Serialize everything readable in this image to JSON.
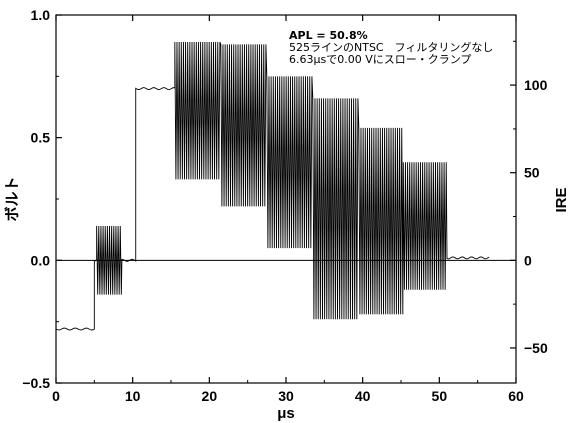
{
  "chart_data": {
    "type": "line",
    "xlabel": "μs",
    "ylabel_left": "ボルト",
    "ylabel_right": "IRE",
    "xlim": [
      0,
      60
    ],
    "ylim": [
      -0.5,
      1.0
    ],
    "xticks": [
      "0",
      "10",
      "20",
      "30",
      "40",
      "50",
      "60"
    ],
    "yticks_left": [
      "−0.5",
      "0.0",
      "0.5",
      "1.0"
    ],
    "yticks_right": [
      "−50",
      "0",
      "50",
      "100"
    ],
    "annotations": [
      "APL = 50.8%",
      "525ラインのNTSC　フィルタリングなし",
      "6.63μsで0.00 Vにスロー・クランプ"
    ],
    "grid": false,
    "series": [
      {
        "segments": [
          {
            "type": "flat",
            "x0": 0,
            "x1": 5.0,
            "y": -0.28
          },
          {
            "type": "flat",
            "x0": 5.0,
            "x1": 5.3,
            "y": 0.0
          },
          {
            "type": "burst",
            "x0": 5.3,
            "x1": 8.6,
            "center": 0.0,
            "amp": 0.14,
            "period": 0.28
          },
          {
            "type": "flat",
            "x0": 8.6,
            "x1": 10.4,
            "y": 0.0
          },
          {
            "type": "flat",
            "x0": 10.4,
            "x1": 15.5,
            "y": 0.7
          },
          {
            "type": "burst",
            "x0": 15.5,
            "x1": 21.5,
            "center": 0.61,
            "amp": 0.28,
            "period": 0.28
          },
          {
            "type": "burst",
            "x0": 21.5,
            "x1": 27.5,
            "center": 0.55,
            "amp": 0.33,
            "period": 0.28
          },
          {
            "type": "burst",
            "x0": 27.5,
            "x1": 33.5,
            "center": 0.4,
            "amp": 0.35,
            "period": 0.28
          },
          {
            "type": "burst",
            "x0": 33.5,
            "x1": 39.5,
            "center": 0.21,
            "amp": 0.45,
            "period": 0.28
          },
          {
            "type": "burst",
            "x0": 39.5,
            "x1": 45.3,
            "center": 0.16,
            "amp": 0.38,
            "period": 0.28
          },
          {
            "type": "burst",
            "x0": 45.3,
            "x1": 51.0,
            "center": 0.14,
            "amp": 0.26,
            "period": 0.28
          },
          {
            "type": "flat",
            "x0": 51.0,
            "x1": 56.5,
            "y": 0.01
          }
        ]
      }
    ]
  }
}
